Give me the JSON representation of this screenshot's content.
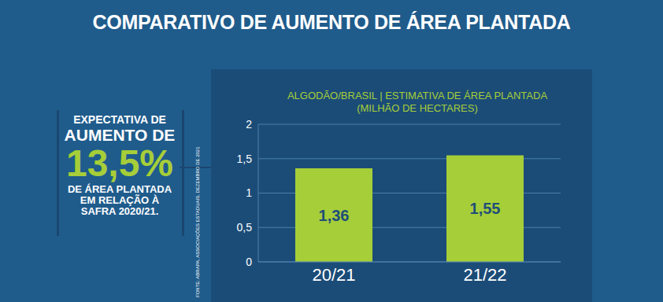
{
  "headline": "COMPARATIVO DE AUMENTO DE ÁREA PLANTADA",
  "callout": {
    "lines_before": [
      "EXPECTATIVA DE",
      "AUMENTO DE"
    ],
    "figure": "13,5%",
    "lines_after": [
      "DE ÁREA PLANTADA",
      "EM RELAÇÃO À",
      "SAFRA 2020/21."
    ]
  },
  "source": "FONTE: ABRAPA, ASSOCIAÇÕES ESTADUAIS, DEZEMBRO DE 2021",
  "chart_data": {
    "type": "bar",
    "title": "ALGODÃO/BRASIL | ESTIMATIVA DE ÁREA PLANTADA",
    "subtitle": "(MILHÃO DE HECTARES)",
    "categories": [
      "20/21",
      "21/22"
    ],
    "values": [
      1.36,
      1.55
    ],
    "value_labels": [
      "1,36",
      "1,55"
    ],
    "color": "#a6ce39",
    "ylim": [
      0,
      2
    ],
    "yticks": [
      0,
      {
        "value": 0.5,
        "label": "0,5"
      },
      1,
      {
        "value": 1.5,
        "label": "1,5"
      },
      2
    ],
    "grid": true,
    "data_labels": true
  }
}
